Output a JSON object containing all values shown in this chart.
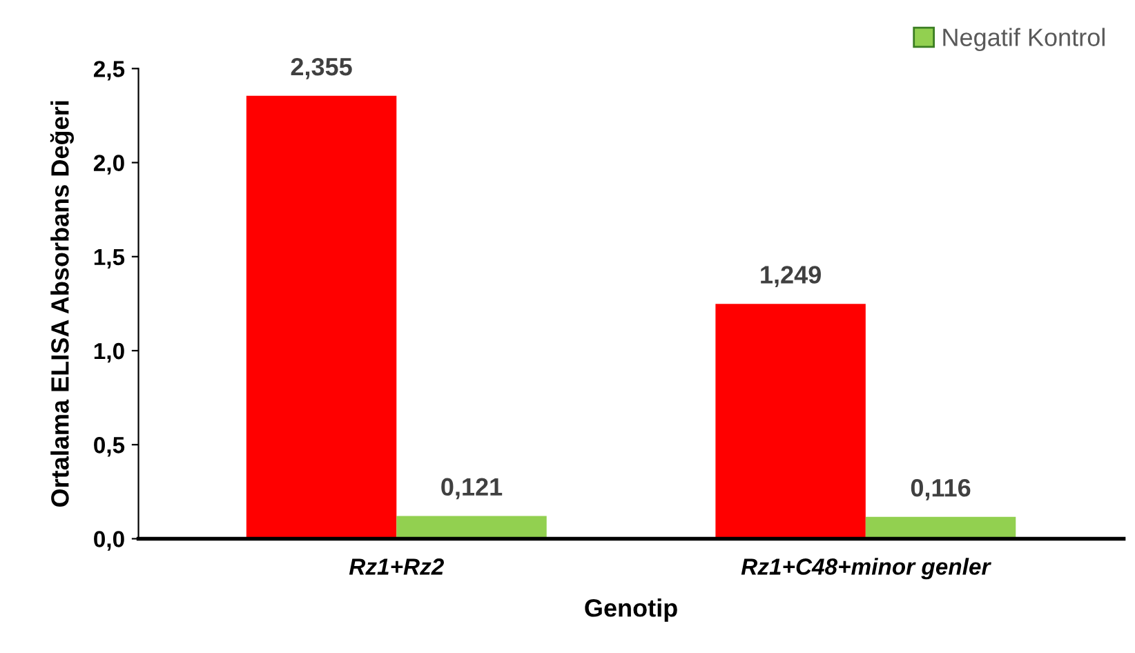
{
  "chart_data": {
    "type": "bar",
    "xlabel": "Genotip",
    "ylabel": "Ortalama ELISA Absorbans Değeri",
    "categories": [
      "Rz1+Rz2",
      "Rz1+C48+minor genler"
    ],
    "series": [
      {
        "color": "#ff0000",
        "values": [
          2.355,
          1.249
        ],
        "value_labels": [
          "2,355",
          "1,249"
        ]
      },
      {
        "name": "Negatif Kontrol",
        "color": "#92d050",
        "values": [
          0.121,
          0.116
        ],
        "value_labels": [
          "0,121",
          "0,116"
        ]
      }
    ],
    "ylim": [
      0,
      2.5
    ],
    "yticks": [
      {
        "value": 0,
        "label": "0,0"
      },
      {
        "value": 0.5,
        "label": "0,5"
      },
      {
        "value": 1,
        "label": "1,0"
      },
      {
        "value": 1.5,
        "label": "1,5"
      },
      {
        "value": 2,
        "label": "2,0"
      },
      {
        "value": 2.5,
        "label": "2,5"
      }
    ],
    "grid": false,
    "legend": "top right"
  }
}
